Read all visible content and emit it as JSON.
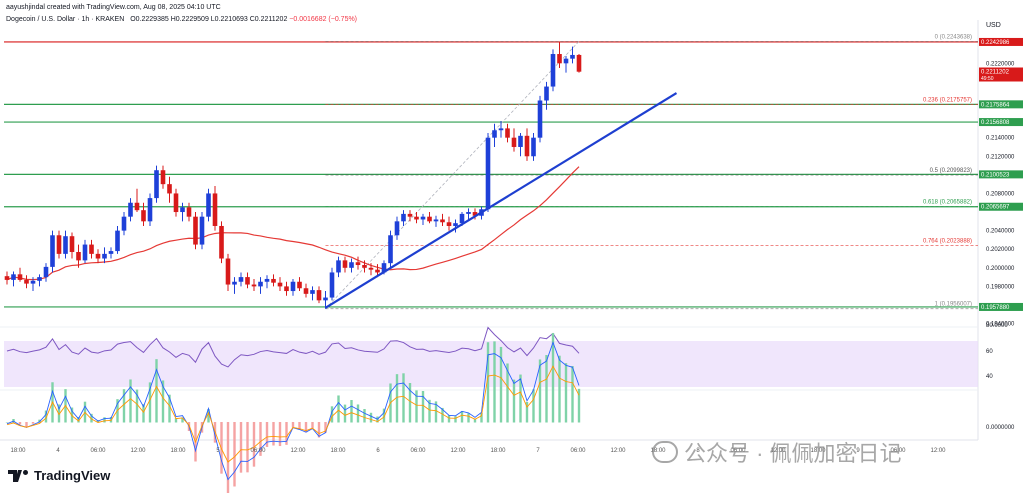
{
  "header": {
    "line1": "aayushjindal created with TradingView.com, Aug 08, 2025 04:10 UTC",
    "symbol": "Dogecoin / U.S. Dollar · 1h · KRAKEN",
    "ohlc": "O0.2229385 H0.2229509 L0.2210693 C0.2211202",
    "change": "−0.0016682 (−0.75%)"
  },
  "brand": {
    "logo_text": "TradingView"
  },
  "watermark": {
    "text": "公众号 · 佩佩加密日记"
  },
  "colors": {
    "up": "#1e40d8",
    "down": "#d81a1a",
    "sma": "#e53935",
    "hline_green": "#2e9e4f",
    "trend": "#1e3fd0",
    "rsi": "#7e57c2",
    "band": "#e9dcfb"
  },
  "chart_data": {
    "type": "candlestick",
    "currency": "USD",
    "ylim": [
      0.1946,
      0.2258
    ],
    "x_labels": [
      "18:00",
      "4",
      "06:00",
      "12:00",
      "18:00",
      "5",
      "06:00",
      "12:00",
      "18:00",
      "6",
      "06:00",
      "12:00",
      "18:00",
      "7",
      "06:00",
      "12:00",
      "18:00",
      "8",
      "06:00",
      "12:00",
      "18:00",
      "9",
      "06:00",
      "12:00"
    ],
    "y_ticks": [
      "0.2220000",
      "0.2140000",
      "0.2120000",
      "0.2080000",
      "0.2040000",
      "0.2020000",
      "0.2000000",
      "0.1980000",
      "0.1940000"
    ],
    "price_labels": [
      {
        "value": 0.2242986,
        "text": "0.2242986",
        "color": "#d81a1a"
      },
      {
        "value": 0.2211202,
        "text": "0.2211202",
        "color": "#d81a1a",
        "sub": "49:50"
      },
      {
        "value": 0.2175864,
        "text": "0.2175864",
        "color": "#2e9e4f"
      },
      {
        "value": 0.2156808,
        "text": "0.2156808",
        "color": "#2e9e4f"
      },
      {
        "value": 0.2100523,
        "text": "0.2100523",
        "color": "#2e9e4f"
      },
      {
        "value": 0.2065697,
        "text": "0.2065697",
        "color": "#2e9e4f"
      },
      {
        "value": 0.195788,
        "text": "0.1957880",
        "color": "#2e9e4f"
      }
    ],
    "horizontal_lines": [
      {
        "value": 0.2242986,
        "color": "#d81a1a"
      },
      {
        "value": 0.2175864,
        "color": "#2e9e4f"
      },
      {
        "value": 0.2156808,
        "color": "#2e9e4f"
      },
      {
        "value": 0.2100523,
        "color": "#2e9e4f"
      },
      {
        "value": 0.2065697,
        "color": "#2e9e4f"
      },
      {
        "value": 0.195788,
        "color": "#2e9e4f"
      }
    ],
    "fib_levels": [
      {
        "ratio": 0,
        "value": 0.2243638,
        "label": "0 (0.2243638)",
        "color": "#888888"
      },
      {
        "ratio": 0.236,
        "value": 0.2175757,
        "label": "0.236 (0.2175757)",
        "color": "#e53935"
      },
      {
        "ratio": 0.5,
        "value": 0.2099823,
        "label": "0.5 (0.2099823)",
        "color": "#555555"
      },
      {
        "ratio": 0.618,
        "value": 0.2065882,
        "label": "0.618 (0.2065882)",
        "color": "#2e9e4f"
      },
      {
        "ratio": 0.764,
        "value": 0.2023888,
        "label": "0.764 (0.2023888)",
        "color": "#e53935"
      },
      {
        "ratio": 1,
        "value": 0.1956007,
        "label": "1 (0.1956007)",
        "color": "#888888"
      }
    ],
    "fib_start_index": 49,
    "trendline": {
      "from": [
        49,
        0.1957
      ],
      "to": [
        103,
        0.2188
      ]
    },
    "candles": [
      [
        0.1991,
        0.1996,
        0.1982,
        0.1987
      ],
      [
        0.1987,
        0.1996,
        0.198,
        0.1993
      ],
      [
        0.1993,
        0.2,
        0.1985,
        0.1987
      ],
      [
        0.1987,
        0.1992,
        0.1978,
        0.1983
      ],
      [
        0.1983,
        0.199,
        0.1975,
        0.1986
      ],
      [
        0.1986,
        0.1993,
        0.198,
        0.199
      ],
      [
        0.199,
        0.2005,
        0.1985,
        0.2001
      ],
      [
        0.2001,
        0.204,
        0.1995,
        0.2035
      ],
      [
        0.2035,
        0.204,
        0.201,
        0.2015
      ],
      [
        0.2015,
        0.204,
        0.201,
        0.2034
      ],
      [
        0.2034,
        0.2038,
        0.201,
        0.2017
      ],
      [
        0.2017,
        0.2025,
        0.2,
        0.2008
      ],
      [
        0.2008,
        0.203,
        0.2005,
        0.2025
      ],
      [
        0.2025,
        0.203,
        0.201,
        0.2015
      ],
      [
        0.2015,
        0.202,
        0.2005,
        0.201
      ],
      [
        0.201,
        0.2022,
        0.2005,
        0.2015
      ],
      [
        0.2015,
        0.2022,
        0.201,
        0.2018
      ],
      [
        0.2018,
        0.2045,
        0.2015,
        0.204
      ],
      [
        0.204,
        0.206,
        0.2035,
        0.2055
      ],
      [
        0.2055,
        0.2075,
        0.205,
        0.207
      ],
      [
        0.207,
        0.2085,
        0.206,
        0.2062
      ],
      [
        0.2062,
        0.207,
        0.2045,
        0.205
      ],
      [
        0.205,
        0.208,
        0.2045,
        0.2075
      ],
      [
        0.2075,
        0.211,
        0.207,
        0.2105
      ],
      [
        0.2105,
        0.211,
        0.2085,
        0.209
      ],
      [
        0.209,
        0.2098,
        0.207,
        0.208
      ],
      [
        0.208,
        0.2085,
        0.2055,
        0.206
      ],
      [
        0.206,
        0.207,
        0.205,
        0.2065
      ],
      [
        0.2065,
        0.207,
        0.205,
        0.2055
      ],
      [
        0.2055,
        0.206,
        0.202,
        0.2025
      ],
      [
        0.2025,
        0.206,
        0.202,
        0.2055
      ],
      [
        0.2055,
        0.2085,
        0.205,
        0.208
      ],
      [
        0.208,
        0.2088,
        0.204,
        0.2045
      ],
      [
        0.2045,
        0.205,
        0.2005,
        0.201
      ],
      [
        0.201,
        0.2015,
        0.1975,
        0.1982
      ],
      [
        0.1982,
        0.199,
        0.1972,
        0.1985
      ],
      [
        0.1985,
        0.1995,
        0.198,
        0.199
      ],
      [
        0.199,
        0.1995,
        0.1978,
        0.1982
      ],
      [
        0.1982,
        0.1988,
        0.1975,
        0.198
      ],
      [
        0.198,
        0.199,
        0.1972,
        0.1985
      ],
      [
        0.1985,
        0.1992,
        0.1978,
        0.1988
      ],
      [
        0.1988,
        0.1993,
        0.198,
        0.1984
      ],
      [
        0.1984,
        0.199,
        0.1975,
        0.198
      ],
      [
        0.198,
        0.1985,
        0.197,
        0.1975
      ],
      [
        0.1975,
        0.1988,
        0.197,
        0.1985
      ],
      [
        0.1985,
        0.199,
        0.1975,
        0.1978
      ],
      [
        0.1978,
        0.1983,
        0.1968,
        0.1972
      ],
      [
        0.1972,
        0.198,
        0.1965,
        0.1976
      ],
      [
        0.1976,
        0.198,
        0.1962,
        0.1965
      ],
      [
        0.1965,
        0.1975,
        0.1956,
        0.1968
      ],
      [
        0.1968,
        0.2,
        0.1965,
        0.1995
      ],
      [
        0.1995,
        0.2012,
        0.199,
        0.2008
      ],
      [
        0.2008,
        0.2012,
        0.1995,
        0.2
      ],
      [
        0.2,
        0.201,
        0.1995,
        0.2006
      ],
      [
        0.2006,
        0.2012,
        0.1998,
        0.2003
      ],
      [
        0.2003,
        0.2008,
        0.1995,
        0.2
      ],
      [
        0.2,
        0.2005,
        0.1992,
        0.1998
      ],
      [
        0.1998,
        0.2004,
        0.199,
        0.1995
      ],
      [
        0.1995,
        0.2008,
        0.1993,
        0.2005
      ],
      [
        0.2005,
        0.204,
        0.2,
        0.2035
      ],
      [
        0.2035,
        0.2055,
        0.203,
        0.205
      ],
      [
        0.205,
        0.2062,
        0.2045,
        0.2058
      ],
      [
        0.2058,
        0.2062,
        0.205,
        0.2055
      ],
      [
        0.2055,
        0.206,
        0.2048,
        0.2052
      ],
      [
        0.2052,
        0.2058,
        0.2046,
        0.2055
      ],
      [
        0.2055,
        0.206,
        0.2048,
        0.205
      ],
      [
        0.205,
        0.2056,
        0.2044,
        0.2052
      ],
      [
        0.2052,
        0.2058,
        0.2045,
        0.2049
      ],
      [
        0.2049,
        0.2055,
        0.204,
        0.2045
      ],
      [
        0.2045,
        0.2052,
        0.2038,
        0.2048
      ],
      [
        0.2048,
        0.206,
        0.2045,
        0.2058
      ],
      [
        0.2058,
        0.2064,
        0.2052,
        0.206
      ],
      [
        0.206,
        0.2064,
        0.2052,
        0.2056
      ],
      [
        0.2056,
        0.2066,
        0.2052,
        0.2063
      ],
      [
        0.2063,
        0.2145,
        0.206,
        0.214
      ],
      [
        0.214,
        0.2155,
        0.213,
        0.2148
      ],
      [
        0.2148,
        0.2158,
        0.214,
        0.215
      ],
      [
        0.215,
        0.2155,
        0.2135,
        0.214
      ],
      [
        0.214,
        0.215,
        0.2125,
        0.213
      ],
      [
        0.213,
        0.2145,
        0.212,
        0.2142
      ],
      [
        0.2142,
        0.215,
        0.2115,
        0.212
      ],
      [
        0.212,
        0.2145,
        0.2115,
        0.214
      ],
      [
        0.214,
        0.2185,
        0.2135,
        0.218
      ],
      [
        0.218,
        0.22,
        0.217,
        0.2195
      ],
      [
        0.2195,
        0.2235,
        0.219,
        0.223
      ],
      [
        0.223,
        0.2243,
        0.2215,
        0.222
      ],
      [
        0.222,
        0.2228,
        0.221,
        0.2225
      ],
      [
        0.2225,
        0.2238,
        0.222,
        0.2229
      ],
      [
        0.2229,
        0.223,
        0.221,
        0.2211
      ]
    ]
  }
}
